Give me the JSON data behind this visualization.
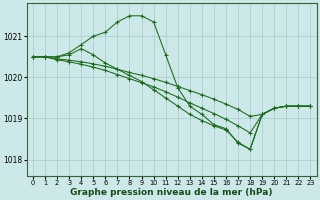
{
  "background_color": "#cce8e8",
  "grid_color": "#aacccc",
  "line_color": "#1a6b1a",
  "xlabel": "Graphe pression niveau de la mer (hPa)",
  "xlabel_fontsize": 6.5,
  "ylim": [
    1017.6,
    1021.8
  ],
  "yticks": [
    1018,
    1019,
    1020,
    1021
  ],
  "xticks": [
    0,
    1,
    2,
    3,
    4,
    5,
    6,
    7,
    8,
    9,
    10,
    11,
    12,
    13,
    14,
    15,
    16,
    17,
    18,
    19,
    20,
    21,
    22,
    23
  ],
  "series": [
    {
      "x": [
        0,
        1,
        2,
        3,
        4,
        5,
        6,
        7,
        8,
        9,
        10,
        11,
        12,
        13,
        14,
        15,
        16,
        17,
        18,
        19,
        20,
        21,
        22,
        23
      ],
      "y": [
        1020.5,
        1020.5,
        1020.5,
        1020.6,
        1020.8,
        1021.0,
        1021.1,
        1021.35,
        1021.5,
        1021.5,
        1021.35,
        1020.55,
        1019.75,
        1019.3,
        1019.1,
        1018.85,
        1018.75,
        1018.4,
        1018.25,
        1019.1,
        1019.25,
        1019.3,
        1019.3,
        1019.3
      ]
    },
    {
      "x": [
        0,
        1,
        2,
        3,
        4,
        5,
        6,
        7,
        8,
        9,
        10,
        11,
        12,
        13,
        14,
        15,
        16,
        17,
        18,
        19,
        20,
        21,
        22,
        23
      ],
      "y": [
        1020.5,
        1020.5,
        1020.5,
        1020.55,
        1020.7,
        1020.55,
        1020.35,
        1020.2,
        1020.05,
        1019.9,
        1019.7,
        1019.5,
        1019.3,
        1019.1,
        1018.95,
        1018.82,
        1018.72,
        1018.42,
        1018.25,
        1019.1,
        1019.25,
        1019.3,
        1019.3,
        1019.3
      ]
    },
    {
      "x": [
        0,
        1,
        2,
        3,
        4,
        5,
        6,
        7,
        8,
        9,
        10,
        11,
        12,
        13,
        14,
        15,
        16,
        17,
        18,
        19,
        20,
        21,
        22,
        23
      ],
      "y": [
        1020.5,
        1020.5,
        1020.45,
        1020.42,
        1020.38,
        1020.33,
        1020.27,
        1020.2,
        1020.12,
        1020.05,
        1019.97,
        1019.88,
        1019.78,
        1019.68,
        1019.58,
        1019.47,
        1019.35,
        1019.22,
        1019.05,
        1019.1,
        1019.25,
        1019.3,
        1019.3,
        1019.3
      ]
    },
    {
      "x": [
        0,
        1,
        2,
        3,
        4,
        5,
        6,
        7,
        8,
        9,
        10,
        11,
        12,
        13,
        14,
        15,
        16,
        17,
        18,
        19,
        20,
        21,
        22,
        23
      ],
      "y": [
        1020.5,
        1020.5,
        1020.43,
        1020.38,
        1020.32,
        1020.25,
        1020.17,
        1020.07,
        1019.97,
        1019.87,
        1019.77,
        1019.65,
        1019.52,
        1019.38,
        1019.25,
        1019.12,
        1018.98,
        1018.82,
        1018.65,
        1019.1,
        1019.25,
        1019.3,
        1019.3,
        1019.3
      ]
    }
  ]
}
